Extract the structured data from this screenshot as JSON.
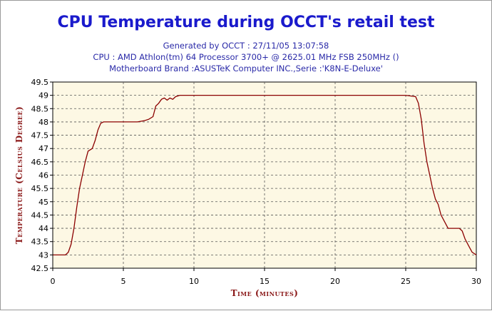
{
  "chart_data": {
    "type": "line",
    "title": "CPU Temperature during OCCT's retail test",
    "subtitles": [
      "Generated by OCCT : 27/11/05 13:07:58",
      "CPU : AMD Athlon(tm) 64 Processor 3700+ @ 2625.01 MHz FSB 250MHz ()",
      "Motherboard Brand :ASUSTeK Computer INC.,Serie :'K8N-E-Deluxe'"
    ],
    "xlabel": "Time (minutes)",
    "ylabel": "Temperature (Celsius Degree)",
    "xlim": [
      0,
      30
    ],
    "ylim": [
      42.5,
      49.5
    ],
    "xticks": [
      0,
      5,
      10,
      15,
      20,
      25,
      30
    ],
    "yticks": [
      42.5,
      43,
      43.5,
      44,
      44.5,
      45,
      45.5,
      46,
      46.5,
      47,
      47.5,
      48,
      48.5,
      49,
      49.5
    ],
    "grid": true,
    "line_color": "#8b0000",
    "plot_background": "#fdf8e4",
    "x": [
      0,
      0.9,
      1.1,
      1.3,
      1.5,
      1.7,
      1.9,
      2.1,
      2.3,
      2.5,
      2.8,
      3.0,
      3.2,
      3.4,
      3.6,
      4.0,
      5.0,
      6.0,
      6.5,
      6.8,
      7.1,
      7.3,
      7.5,
      7.7,
      7.9,
      8.1,
      8.3,
      8.5,
      8.7,
      9.0,
      9.5,
      15,
      20,
      25,
      25.7,
      25.9,
      26.1,
      26.3,
      26.5,
      26.7,
      26.9,
      27.1,
      27.3,
      27.5,
      28.0,
      28.5,
      28.8,
      29.0,
      29.2,
      29.5,
      29.7,
      30.0
    ],
    "values": [
      43,
      43,
      43.1,
      43.4,
      44.0,
      44.8,
      45.5,
      46.0,
      46.5,
      46.9,
      47.0,
      47.3,
      47.7,
      47.95,
      48,
      48,
      48,
      48,
      48.05,
      48.1,
      48.2,
      48.6,
      48.7,
      48.85,
      48.9,
      48.82,
      48.9,
      48.85,
      48.95,
      49,
      49,
      49,
      49,
      49,
      48.95,
      48.7,
      48.1,
      47.2,
      46.5,
      46.0,
      45.5,
      45.1,
      44.9,
      44.5,
      44.0,
      44.0,
      44.0,
      43.9,
      43.6,
      43.3,
      43.1,
      43.0
    ]
  }
}
